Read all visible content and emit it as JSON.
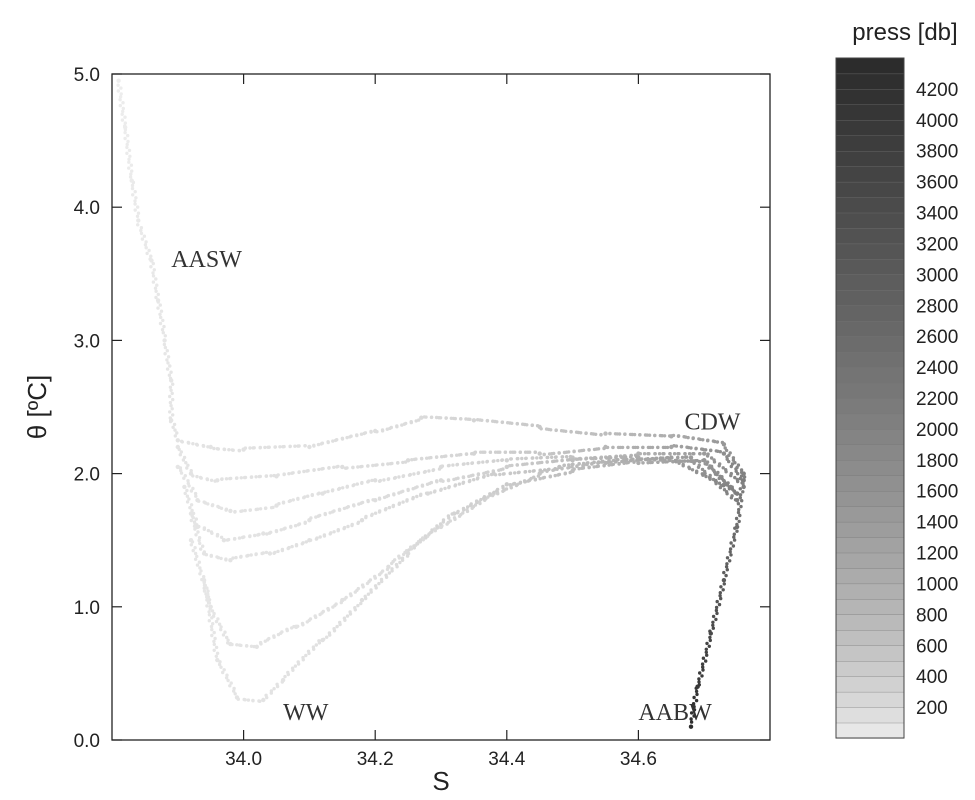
{
  "chart_data": {
    "type": "scatter",
    "title": "",
    "xlabel": "S",
    "ylabel": "θ [ºC]",
    "xlim": [
      33.8,
      34.8
    ],
    "ylim": [
      0.0,
      5.0
    ],
    "x_ticks": [
      34.0,
      34.2,
      34.4,
      34.6
    ],
    "x_tick_labels": [
      "34.0",
      "34.2",
      "34.4",
      "34.6"
    ],
    "y_ticks": [
      0.0,
      1.0,
      2.0,
      3.0,
      4.0,
      5.0
    ],
    "y_tick_labels": [
      "0.0",
      "1.0",
      "2.0",
      "3.0",
      "4.0",
      "5.0"
    ],
    "grid": false,
    "annotations": [
      {
        "text": "AASW",
        "x": 33.89,
        "y": 3.55
      },
      {
        "text": "CDW",
        "x": 34.67,
        "y": 2.33
      },
      {
        "text": "WW",
        "x": 34.06,
        "y": 0.15
      },
      {
        "text": "AABW",
        "x": 34.6,
        "y": 0.15
      }
    ],
    "colorbar": {
      "title": "press [db]",
      "min": 0,
      "max": 4400,
      "tick_values": [
        200,
        400,
        600,
        800,
        1000,
        1200,
        1400,
        1600,
        1800,
        2000,
        2200,
        2400,
        2600,
        2800,
        3000,
        3200,
        3400,
        3600,
        3800,
        4000,
        4200
      ],
      "tick_labels": [
        "200",
        "400",
        "600",
        "800",
        "1000",
        "1200",
        "1400",
        "1600",
        "1800",
        "2000",
        "2200",
        "2400",
        "2600",
        "2800",
        "3000",
        "3200",
        "3400",
        "3600",
        "3800",
        "4000",
        "4200"
      ],
      "color_low": "#eeeeee",
      "color_high": "#2a2a2a"
    },
    "series": [
      {
        "points": [
          [
            33.81,
            4.95,
            5
          ],
          [
            33.82,
            4.6,
            10
          ],
          [
            33.83,
            4.2,
            20
          ],
          [
            33.84,
            3.9,
            30
          ],
          [
            33.86,
            3.6,
            40
          ],
          [
            33.87,
            3.3,
            50
          ],
          [
            33.88,
            3.0,
            60
          ],
          [
            33.89,
            2.7,
            70
          ],
          [
            33.89,
            2.4,
            80
          ],
          [
            33.9,
            2.25,
            90
          ],
          [
            33.95,
            2.2,
            100
          ],
          [
            34.0,
            2.18,
            110
          ],
          [
            34.1,
            2.2,
            130
          ],
          [
            34.2,
            2.32,
            160
          ],
          [
            34.27,
            2.42,
            200
          ],
          [
            34.35,
            2.4,
            300
          ],
          [
            34.45,
            2.35,
            500
          ],
          [
            34.55,
            2.3,
            700
          ],
          [
            34.65,
            2.28,
            1000
          ],
          [
            34.73,
            2.22,
            1500
          ],
          [
            34.76,
            2.0,
            2000
          ],
          [
            34.75,
            1.6,
            2500
          ],
          [
            34.73,
            1.2,
            3000
          ],
          [
            34.71,
            0.8,
            3500
          ],
          [
            34.69,
            0.4,
            4000
          ],
          [
            34.68,
            0.1,
            4300
          ]
        ]
      },
      {
        "points": [
          [
            33.9,
            2.2,
            80
          ],
          [
            33.92,
            2.0,
            90
          ],
          [
            33.96,
            1.95,
            100
          ],
          [
            34.05,
            1.98,
            120
          ],
          [
            34.15,
            2.05,
            150
          ],
          [
            34.25,
            2.1,
            200
          ],
          [
            34.35,
            2.15,
            300
          ],
          [
            34.45,
            2.15,
            500
          ],
          [
            34.55,
            2.2,
            800
          ],
          [
            34.65,
            2.2,
            1200
          ],
          [
            34.73,
            2.15,
            1700
          ],
          [
            34.76,
            1.95,
            2100
          ]
        ]
      },
      {
        "points": [
          [
            33.9,
            2.05,
            70
          ],
          [
            33.93,
            1.8,
            80
          ],
          [
            33.98,
            1.72,
            90
          ],
          [
            34.05,
            1.76,
            100
          ],
          [
            34.12,
            1.85,
            120
          ],
          [
            34.2,
            1.95,
            150
          ],
          [
            34.3,
            2.05,
            200
          ],
          [
            34.4,
            2.1,
            350
          ],
          [
            34.5,
            2.12,
            600
          ],
          [
            34.6,
            2.15,
            900
          ],
          [
            34.7,
            2.15,
            1400
          ],
          [
            34.76,
            1.9,
            2000
          ]
        ]
      },
      {
        "points": [
          [
            33.91,
            1.9,
            70
          ],
          [
            33.93,
            1.6,
            80
          ],
          [
            33.97,
            1.5,
            90
          ],
          [
            34.03,
            1.55,
            100
          ],
          [
            34.1,
            1.65,
            120
          ],
          [
            34.2,
            1.8,
            160
          ],
          [
            34.3,
            1.95,
            220
          ],
          [
            34.4,
            2.05,
            400
          ],
          [
            34.5,
            2.1,
            700
          ],
          [
            34.6,
            2.12,
            1000
          ],
          [
            34.7,
            2.1,
            1500
          ],
          [
            34.75,
            1.85,
            2100
          ]
        ]
      },
      {
        "points": [
          [
            33.92,
            1.7,
            70
          ],
          [
            33.94,
            1.4,
            80
          ],
          [
            33.98,
            1.35,
            90
          ],
          [
            34.04,
            1.4,
            100
          ],
          [
            34.1,
            1.5,
            120
          ],
          [
            34.18,
            1.65,
            150
          ],
          [
            34.28,
            1.85,
            220
          ],
          [
            34.38,
            2.0,
            400
          ],
          [
            34.48,
            2.05,
            650
          ],
          [
            34.58,
            2.1,
            950
          ],
          [
            34.68,
            2.12,
            1400
          ],
          [
            34.75,
            1.8,
            2100
          ]
        ]
      },
      {
        "points": [
          [
            33.92,
            1.5,
            60
          ],
          [
            33.95,
            1.0,
            70
          ],
          [
            33.98,
            0.72,
            80
          ],
          [
            34.02,
            0.7,
            90
          ],
          [
            34.08,
            0.85,
            100
          ],
          [
            34.15,
            1.05,
            120
          ],
          [
            34.22,
            1.3,
            150
          ],
          [
            34.3,
            1.6,
            200
          ],
          [
            34.38,
            1.85,
            350
          ],
          [
            34.45,
            2.0,
            550
          ],
          [
            34.55,
            2.08,
            850
          ],
          [
            34.65,
            2.12,
            1300
          ],
          [
            34.74,
            1.9,
            2000
          ]
        ]
      },
      {
        "points": [
          [
            33.94,
            1.2,
            60
          ],
          [
            33.96,
            0.6,
            70
          ],
          [
            33.99,
            0.32,
            80
          ],
          [
            34.03,
            0.3,
            90
          ],
          [
            34.06,
            0.45,
            100
          ],
          [
            34.12,
            0.75,
            120
          ],
          [
            34.18,
            1.05,
            150
          ],
          [
            34.25,
            1.4,
            200
          ],
          [
            34.32,
            1.7,
            300
          ],
          [
            34.4,
            1.92,
            450
          ],
          [
            34.5,
            2.02,
            700
          ],
          [
            34.6,
            2.08,
            1000
          ],
          [
            34.7,
            2.1,
            1500
          ],
          [
            34.75,
            1.85,
            2100
          ]
        ]
      }
    ]
  }
}
